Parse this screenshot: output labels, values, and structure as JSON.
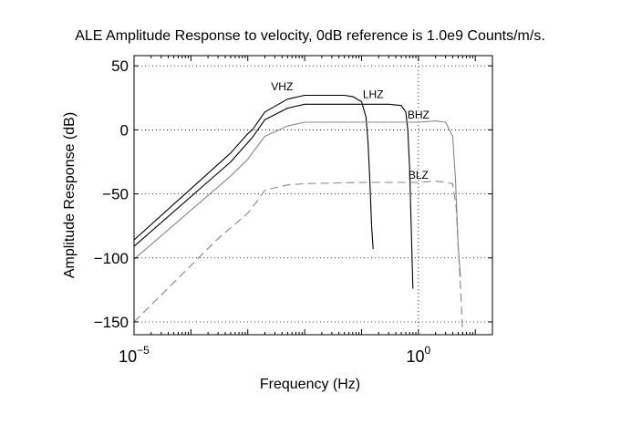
{
  "chart_data": {
    "type": "line",
    "title": "ALE Amplitude Response to velocity, 0dB reference is 1.0e9 Counts/m/s.",
    "xlabel": "Frequency (Hz)",
    "ylabel": "Amplitude Response (dB)",
    "x_scale": "log",
    "xlim": [
      1e-05,
      20
    ],
    "ylim": [
      -160,
      58
    ],
    "x_ticks": [
      {
        "value": 1e-05,
        "base": "10",
        "exp": "−5"
      },
      {
        "value": 1,
        "base": "10",
        "exp": "0"
      }
    ],
    "y_ticks": [
      {
        "value": 50,
        "label": "50"
      },
      {
        "value": 0,
        "label": "0"
      },
      {
        "value": -50,
        "label": "−50"
      },
      {
        "value": -100,
        "label": "−100"
      },
      {
        "value": -150,
        "label": "−150"
      }
    ],
    "grid": true,
    "series": [
      {
        "name": "VHZ",
        "color": "#000000",
        "dash": "solid",
        "x": [
          1e-05,
          0.0005,
          0.001,
          0.0012,
          0.002,
          0.005,
          0.01,
          0.03,
          0.05,
          0.07,
          0.1,
          0.12,
          0.13,
          0.14,
          0.15,
          0.16
        ],
        "y": [
          -86,
          -18,
          -3,
          0,
          14,
          24,
          27,
          27,
          27,
          26,
          22,
          10,
          -10,
          -40,
          -75,
          -93
        ]
      },
      {
        "name": "LHZ",
        "color": "#000000",
        "dash": "solid",
        "x": [
          1e-05,
          0.0005,
          0.001,
          0.0012,
          0.002,
          0.005,
          0.01,
          0.1,
          0.3,
          0.5,
          0.6,
          0.65,
          0.7,
          0.75,
          0.8
        ],
        "y": [
          -91,
          -25,
          -10,
          -6,
          8,
          17,
          20,
          20,
          20,
          19,
          14,
          0,
          -30,
          -80,
          -124
        ]
      },
      {
        "name": "BHZ",
        "color": "#888888",
        "dash": "solid",
        "x": [
          1e-05,
          0.0005,
          0.001,
          0.0012,
          0.002,
          0.005,
          0.01,
          0.1,
          1,
          2,
          3,
          4,
          4.5,
          5,
          5.5
        ],
        "y": [
          -101,
          -36,
          -23,
          -18,
          -5,
          3,
          6,
          6,
          6,
          7,
          6,
          -5,
          -40,
          -90,
          -115
        ]
      },
      {
        "name": "BLZ",
        "color": "#888888",
        "dash": "dashed",
        "x": [
          1e-05,
          0.0003,
          0.001,
          0.0015,
          0.002,
          0.005,
          0.01,
          0.1,
          1,
          2,
          3,
          4,
          4.6,
          5,
          5.6,
          6
        ],
        "y": [
          -150,
          -85,
          -65,
          -55,
          -47,
          -43,
          -42,
          -41,
          -41,
          -40,
          -41,
          -42,
          -60,
          -90,
          -130,
          -160
        ]
      }
    ],
    "annotations": [
      {
        "text": "VHZ",
        "x": 0.004,
        "y": 31
      },
      {
        "text": "LHZ",
        "x": 0.16,
        "y": 25
      },
      {
        "text": "BHZ",
        "x": 1.0,
        "y": 9
      },
      {
        "text": "BLZ",
        "x": 1.0,
        "y": -38
      }
    ]
  }
}
